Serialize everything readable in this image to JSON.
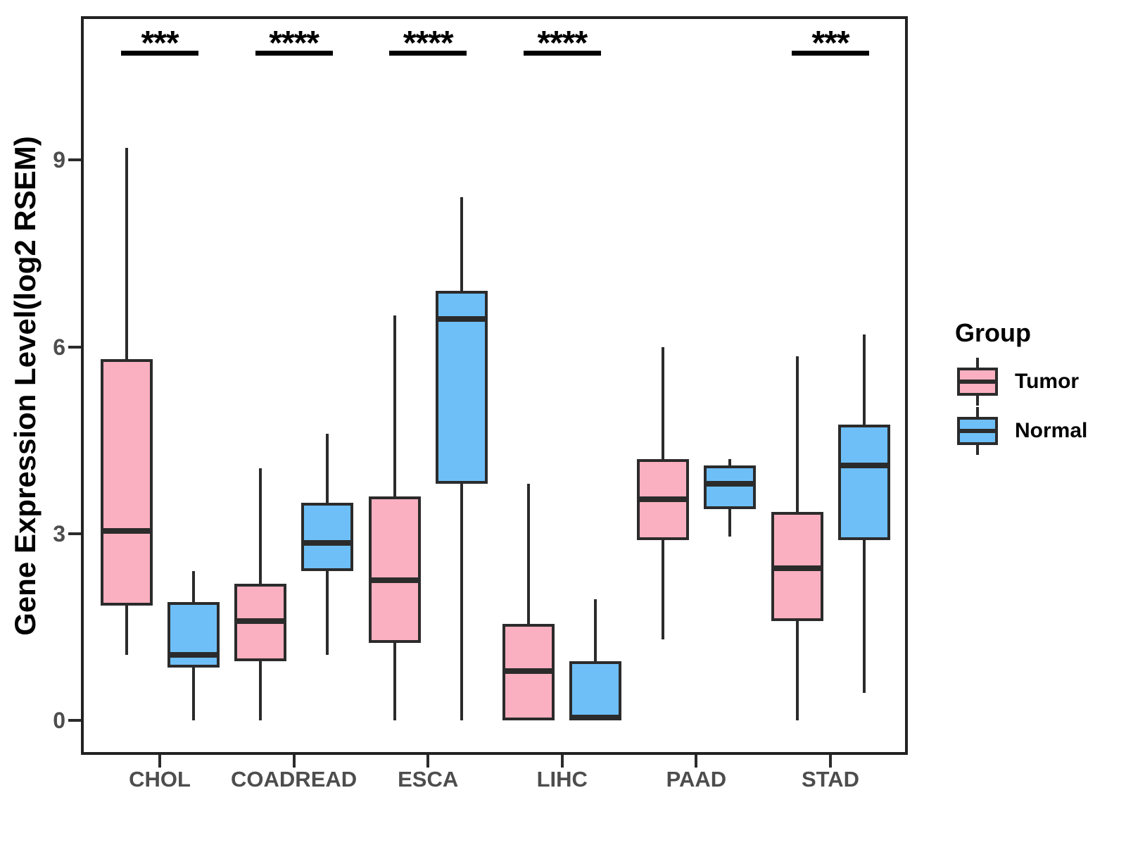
{
  "chart_data": {
    "type": "boxplot-grouped",
    "title": "",
    "ylabel": "Gene Expression Level(log2 RSEM)",
    "xlabel": "",
    "ylim": [
      -0.55,
      11.31
    ],
    "yticks": [
      0,
      3,
      6,
      9
    ],
    "grid": "off",
    "categories": [
      "CHOL",
      "COADREAD",
      "ESCA",
      "LIHC",
      "PAAD",
      "STAD"
    ],
    "legend": {
      "title": "Group",
      "position": "right",
      "items": [
        {
          "label": "Tumor",
          "color": "#FAB0C0"
        },
        {
          "label": "Normal",
          "color": "#6EBFF7"
        }
      ]
    },
    "series": [
      {
        "name": "Tumor",
        "color": "#FAB0C0",
        "boxes": [
          {
            "category": "CHOL",
            "whisker_low": 1.05,
            "q1": 1.85,
            "median": 3.05,
            "q3": 5.8,
            "whisker_high": 9.2
          },
          {
            "category": "COADREAD",
            "whisker_low": 0.0,
            "q1": 0.95,
            "median": 1.6,
            "q3": 2.2,
            "whisker_high": 4.05
          },
          {
            "category": "ESCA",
            "whisker_low": 0.0,
            "q1": 1.25,
            "median": 2.25,
            "q3": 3.6,
            "whisker_high": 6.5
          },
          {
            "category": "LIHC",
            "whisker_low": 0.0,
            "q1": 0.0,
            "median": 0.8,
            "q3": 1.55,
            "whisker_high": 3.8
          },
          {
            "category": "PAAD",
            "whisker_low": 1.3,
            "q1": 2.9,
            "median": 3.55,
            "q3": 4.2,
            "whisker_high": 6.0
          },
          {
            "category": "STAD",
            "whisker_low": 0.0,
            "q1": 1.6,
            "median": 2.45,
            "q3": 3.35,
            "whisker_high": 5.85
          }
        ]
      },
      {
        "name": "Normal",
        "color": "#6EBFF7",
        "boxes": [
          {
            "category": "CHOL",
            "whisker_low": 0.0,
            "q1": 0.85,
            "median": 1.05,
            "q3": 1.9,
            "whisker_high": 2.4
          },
          {
            "category": "COADREAD",
            "whisker_low": 1.05,
            "q1": 2.4,
            "median": 2.85,
            "q3": 3.5,
            "whisker_high": 4.6
          },
          {
            "category": "ESCA",
            "whisker_low": 0.0,
            "q1": 3.8,
            "median": 6.45,
            "q3": 6.9,
            "whisker_high": 8.4
          },
          {
            "category": "LIHC",
            "whisker_low": 0.0,
            "q1": 0.0,
            "median": 0.05,
            "q3": 0.95,
            "whisker_high": 1.95
          },
          {
            "category": "PAAD",
            "whisker_low": 2.95,
            "q1": 3.4,
            "median": 3.8,
            "q3": 4.1,
            "whisker_high": 4.2
          },
          {
            "category": "STAD",
            "whisker_low": 0.45,
            "q1": 2.9,
            "median": 4.1,
            "q3": 4.75,
            "whisker_high": 6.2
          }
        ]
      }
    ],
    "significance": [
      {
        "category": "CHOL",
        "label": "***"
      },
      {
        "category": "COADREAD",
        "label": "****"
      },
      {
        "category": "ESCA",
        "label": "****"
      },
      {
        "category": "LIHC",
        "label": "****"
      },
      {
        "category": "PAAD",
        "label": null
      },
      {
        "category": "STAD",
        "label": "***"
      }
    ],
    "colors": {
      "box_line": "#2b2b2b",
      "panel_border": "#222222",
      "tick_label": "#4d4d4d",
      "significance": "#000000",
      "background": "#ffffff"
    }
  }
}
